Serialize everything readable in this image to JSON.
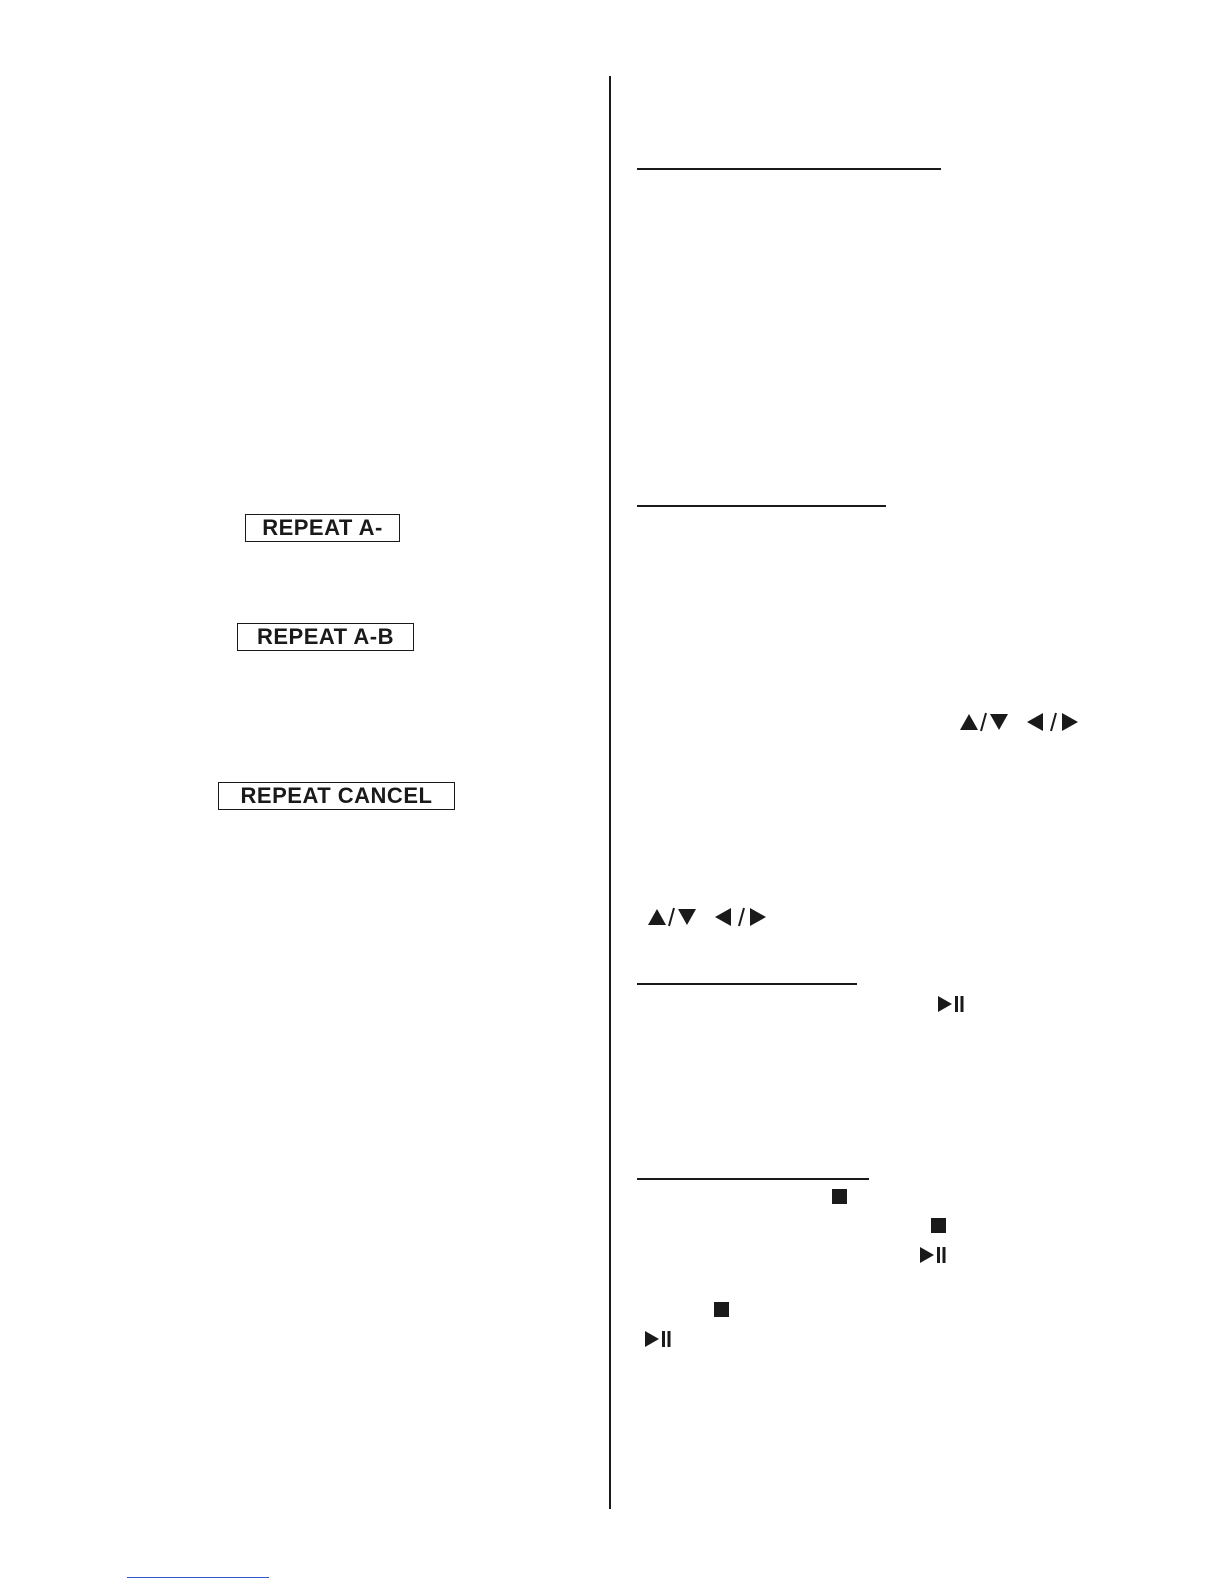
{
  "left_column": {
    "badges": {
      "repeat_a": "REPEAT A-",
      "repeat_ab": "REPEAT A-B",
      "repeat_cancel": "REPEAT CANCEL"
    }
  },
  "icons": {
    "up_down": "up-down-arrows-icon",
    "left_right": "left-right-arrows-icon",
    "play_pause": "play-pause-icon",
    "stop": "stop-icon"
  }
}
